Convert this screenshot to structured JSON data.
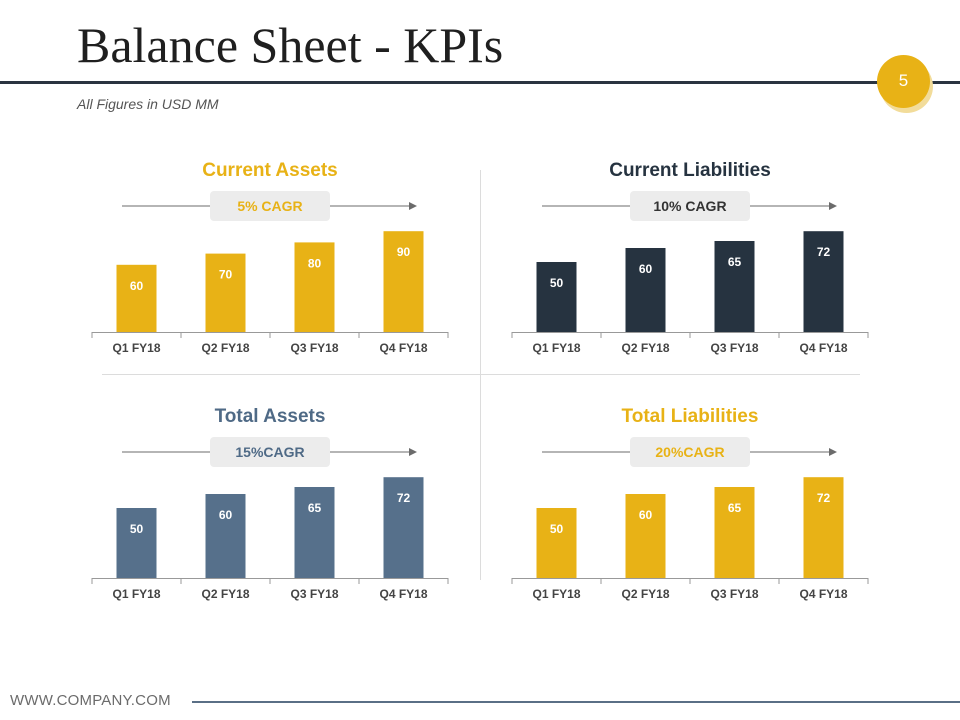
{
  "header": {
    "title": "Balance Sheet - KPIs",
    "subtitle": "All Figures in USD MM",
    "page_number": "5"
  },
  "footer": {
    "website": "WWW.COMPANY.COM"
  },
  "colors": {
    "gold": "#e8b216",
    "navy": "#263340",
    "slate": "#56708b",
    "title_navy": "#263340",
    "title_slate": "#4f6a86",
    "axis": "#999999",
    "arrow": "#6b6b6b",
    "cagr_box": "#ececec",
    "cagr_text_gold": "#e8b216",
    "cagr_text_dark": "#333333",
    "cagr_text_slate": "#4f6a86"
  },
  "chart_data": [
    {
      "type": "bar",
      "title": "Current Assets",
      "cagr": "5% CAGR",
      "categories": [
        "Q1 FY18",
        "Q2 FY18",
        "Q3 FY18",
        "Q4 FY18"
      ],
      "values": [
        60,
        70,
        80,
        90
      ],
      "ylim": [
        0,
        100
      ],
      "color": "#e8b216",
      "title_color": "#e8b216",
      "cagr_color": "#e8b216",
      "xlabel": "",
      "ylabel": ""
    },
    {
      "type": "bar",
      "title": "Current Liabilities",
      "cagr": "10% CAGR",
      "categories": [
        "Q1 FY18",
        "Q2 FY18",
        "Q3 FY18",
        "Q4 FY18"
      ],
      "values": [
        50,
        60,
        65,
        72
      ],
      "ylim": [
        0,
        80
      ],
      "color": "#263340",
      "title_color": "#263340",
      "cagr_color": "#333333",
      "xlabel": "",
      "ylabel": ""
    },
    {
      "type": "bar",
      "title": "Total Assets",
      "cagr": "15%CAGR",
      "categories": [
        "Q1 FY18",
        "Q2 FY18",
        "Q3 FY18",
        "Q4 FY18"
      ],
      "values": [
        50,
        60,
        65,
        72
      ],
      "ylim": [
        0,
        80
      ],
      "color": "#56708b",
      "title_color": "#4f6a86",
      "cagr_color": "#4f6a86",
      "xlabel": "",
      "ylabel": ""
    },
    {
      "type": "bar",
      "title": "Total Liabilities",
      "cagr": "20%CAGR",
      "categories": [
        "Q1 FY18",
        "Q2 FY18",
        "Q3 FY18",
        "Q4 FY18"
      ],
      "values": [
        50,
        60,
        65,
        72
      ],
      "ylim": [
        0,
        80
      ],
      "color": "#e8b216",
      "title_color": "#e8b216",
      "cagr_color": "#e8b216",
      "xlabel": "",
      "ylabel": ""
    }
  ]
}
